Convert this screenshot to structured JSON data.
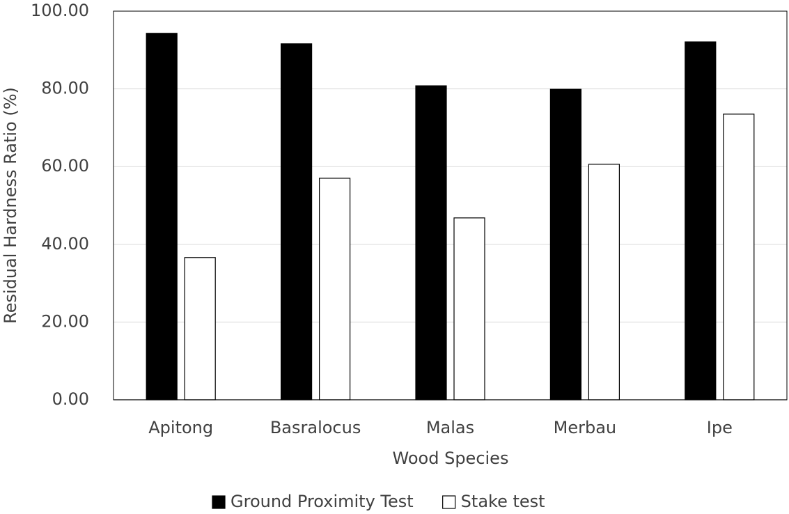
{
  "chart_data": {
    "type": "bar",
    "x_label": "Wood Species",
    "y_label": "Residual Hardness Ratio (%)",
    "categories": [
      "Apitong",
      "Basralocus",
      "Malas",
      "Merbau",
      "Ipe"
    ],
    "series": [
      {
        "name": "Ground Proximity Test",
        "color": "#000000",
        "values": [
          94.3,
          91.6,
          80.8,
          79.9,
          92.1
        ]
      },
      {
        "name": "Stake test",
        "color": "#ffffff",
        "values": [
          36.6,
          57.0,
          46.8,
          60.6,
          73.5
        ]
      }
    ],
    "ylim": [
      0,
      100
    ],
    "yticks": [
      {
        "value": 0,
        "label": "0.00"
      },
      {
        "value": 20,
        "label": "20.00"
      },
      {
        "value": 40,
        "label": "40.00"
      },
      {
        "value": 60,
        "label": "60.00"
      },
      {
        "value": 80,
        "label": "80.00"
      },
      {
        "value": 100,
        "label": "100.00"
      }
    ],
    "grid": true,
    "legend": "bottom"
  }
}
